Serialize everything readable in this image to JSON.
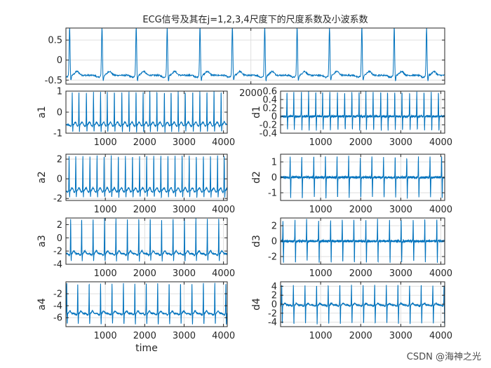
{
  "watermark": "CSDN @海神之光",
  "chart_data": [
    {
      "type": "line",
      "id": "signal",
      "title": "ECG信号及其在j=1,2,3,4尺度下的尺度系数及小波系数",
      "xlabel": "",
      "ylabel": "",
      "xlim": [
        0,
        4096
      ],
      "ylim": [
        -0.6,
        0.8
      ],
      "yticks": [
        0.5,
        0,
        -0.5
      ],
      "xticks": [
        2000
      ],
      "grid": true,
      "baseline": -0.38,
      "peak": 0.85,
      "trough": -0.55,
      "beat_x": [
        40,
        390,
        760,
        1095,
        1450,
        1800,
        2150,
        2500,
        2850,
        3200,
        3550,
        3900
      ]
    },
    {
      "type": "line",
      "id": "a1",
      "ylabel": "a1",
      "xlabel": "",
      "xlim": [
        0,
        4096
      ],
      "ylim": [
        -1,
        1
      ],
      "yticks": [
        1,
        0,
        -1
      ],
      "xticks": [
        1000,
        2000,
        3000,
        4000
      ],
      "grid": true,
      "baseline": -0.6,
      "peak": 1.0,
      "trough": -1.0,
      "beat_x": [
        160,
        330,
        520,
        700,
        880,
        1050,
        1230,
        1420,
        1600,
        1780,
        1960,
        2130,
        2310,
        2500,
        2670,
        2850,
        3030,
        3220,
        3400,
        3580,
        3760,
        3940
      ]
    },
    {
      "type": "line",
      "id": "d1",
      "ylabel": "d1",
      "xlabel": "",
      "xlim": [
        0,
        4096
      ],
      "ylim": [
        -0.4,
        0.6
      ],
      "yticks": [
        0.6,
        0.4,
        0.2,
        0,
        -0.2,
        -0.4
      ],
      "xticks": [
        1000,
        2000,
        3000,
        4000
      ],
      "grid": true,
      "baseline": 0,
      "peak": 0.6,
      "trough": -0.35,
      "beat_x": [
        160,
        330,
        520,
        700,
        880,
        1050,
        1230,
        1420,
        1600,
        1780,
        1960,
        2130,
        2310,
        2500,
        2670,
        2850,
        3030,
        3220,
        3400,
        3580,
        3760,
        3940
      ]
    },
    {
      "type": "line",
      "id": "a2",
      "ylabel": "a2",
      "xlabel": "",
      "xlim": [
        0,
        4096
      ],
      "ylim": [
        -2.2,
        2.5
      ],
      "yticks": [
        2,
        0,
        -2
      ],
      "xticks": [
        1000,
        2000,
        3000,
        4000
      ],
      "grid": true,
      "baseline": -1.2,
      "peak": 2.4,
      "trough": -2.0,
      "beat_x": [
        80,
        250,
        430,
        610,
        790,
        970,
        1150,
        1330,
        1510,
        1690,
        1870,
        2050,
        2230,
        2410,
        2590,
        2770,
        2950,
        3130,
        3310,
        3490,
        3670,
        3850,
        4020
      ]
    },
    {
      "type": "line",
      "id": "d2",
      "ylabel": "d2",
      "xlabel": "",
      "xlim": [
        0,
        4096
      ],
      "ylim": [
        -1.5,
        1.5
      ],
      "yticks": [
        1,
        0,
        -1
      ],
      "xticks": [
        1000,
        2000,
        3000,
        4000
      ],
      "grid": true,
      "baseline": 0,
      "peak": 1.4,
      "trough": -1.4,
      "beat_x": [
        240,
        530,
        830,
        1120,
        1410,
        1700,
        1990,
        2280,
        2570,
        2860,
        3150,
        3440,
        3730,
        4020
      ]
    },
    {
      "type": "line",
      "id": "a3",
      "ylabel": "a3",
      "xlabel": "",
      "xlim": [
        0,
        4096
      ],
      "ylim": [
        -4,
        3
      ],
      "yticks": [
        2,
        0,
        -2,
        -4
      ],
      "xticks": [
        1000,
        2000,
        3000,
        4000
      ],
      "grid": true,
      "baseline": -2.4,
      "peak": 3.0,
      "trough": -3.7,
      "beat_x": [
        120,
        400,
        690,
        980,
        1270,
        1560,
        1850,
        2140,
        2430,
        2720,
        3010,
        3300,
        3590,
        3880
      ]
    },
    {
      "type": "line",
      "id": "d3",
      "ylabel": "d3",
      "xlabel": "",
      "xlim": [
        0,
        4096
      ],
      "ylim": [
        -3,
        3
      ],
      "yticks": [
        2,
        0,
        -2
      ],
      "xticks": [
        1000,
        2000,
        3000,
        4000
      ],
      "grid": true,
      "baseline": 0,
      "peak": 2.9,
      "trough": -2.9,
      "beat_x": [
        60,
        360,
        650,
        950,
        1250,
        1540,
        1830,
        2130,
        2420,
        2720,
        3010,
        3310,
        3600,
        3900
      ]
    },
    {
      "type": "line",
      "id": "a4",
      "ylabel": "a4",
      "xlabel": "time",
      "xlim": [
        0,
        4096
      ],
      "ylim": [
        -7.5,
        0
      ],
      "yticks": [
        -2,
        -4,
        -6
      ],
      "xticks": [
        1000,
        2000,
        3000,
        4000
      ],
      "grid": true,
      "baseline": -5.3,
      "peak": -0.1,
      "trough": -7.3,
      "beat_x": [
        20,
        300,
        590,
        880,
        1170,
        1460,
        1750,
        2040,
        2330,
        2620,
        2910,
        3200,
        3490,
        3780,
        4060
      ]
    },
    {
      "type": "line",
      "id": "d4",
      "ylabel": "d4",
      "xlabel": "",
      "xlim": [
        0,
        4096
      ],
      "ylim": [
        -5,
        5
      ],
      "yticks": [
        4,
        2,
        0,
        -2,
        -4
      ],
      "xticks": [
        1000,
        2000,
        3000,
        4000
      ],
      "grid": true,
      "baseline": -0.2,
      "peak": 4.6,
      "trough": -4.6,
      "beat_x": [
        30,
        320,
        610,
        900,
        1190,
        1480,
        1770,
        2060,
        2350,
        2640,
        2930,
        3220,
        3510,
        3800,
        4080
      ]
    }
  ],
  "colors": {
    "line": "#0072bd",
    "axis": "#262626",
    "grid": "#dfdfdf",
    "background": "#ffffff"
  }
}
